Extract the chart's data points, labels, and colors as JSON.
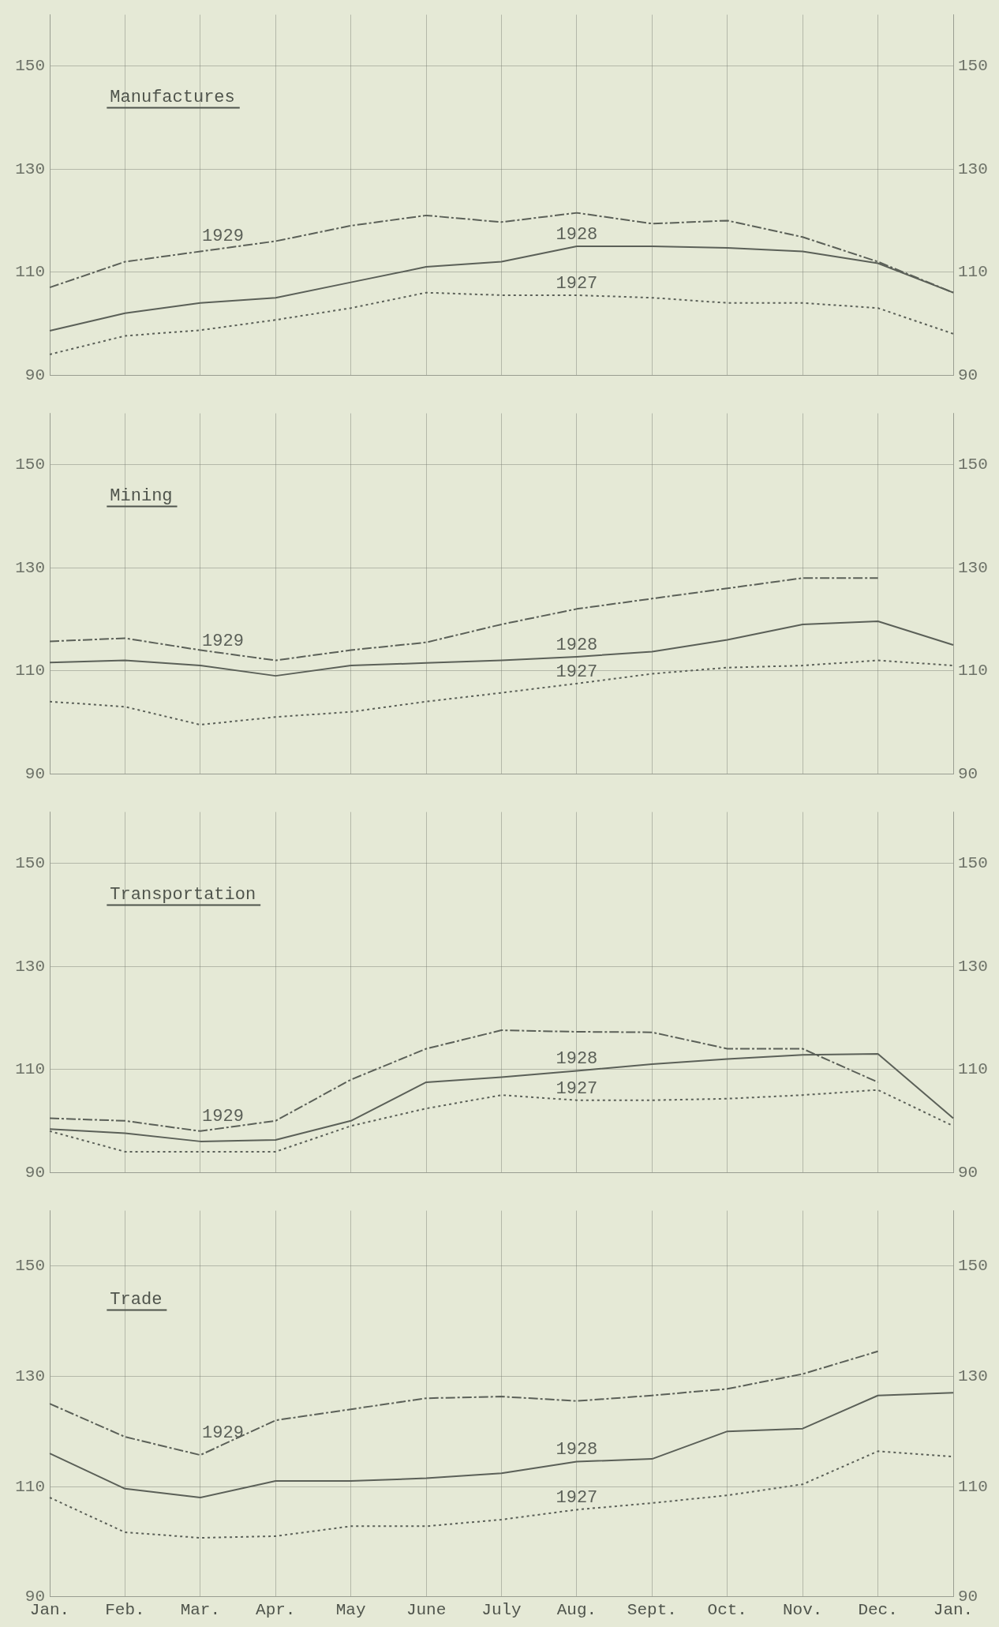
{
  "chart_data": [
    {
      "type": "line",
      "title": "Manufactures",
      "categories": [
        null,
        null,
        null,
        null,
        null,
        null,
        null,
        null,
        null,
        null,
        null,
        null,
        null
      ],
      "ylim": [
        90,
        160
      ],
      "yticks": [
        90,
        110,
        130,
        150
      ],
      "y2lim": [
        90,
        160
      ],
      "y2ticks": [
        90,
        110,
        130,
        150
      ],
      "grid": true,
      "tick_labels": "y",
      "marker": "none",
      "series": [
        {
          "name": "1929",
          "color": "#5b6058",
          "line_style": "dashed",
          "values": [
            107,
            112,
            114,
            116,
            119,
            121,
            119.7,
            121.5,
            119.4,
            120,
            116.8,
            112,
            106
          ]
        },
        {
          "name": "1928",
          "color": "#5b6058",
          "line_style": "solid",
          "values": [
            98.6,
            102,
            104,
            105,
            108,
            111,
            112,
            115,
            115,
            114.7,
            114,
            111.7,
            106
          ]
        },
        {
          "name": "1927",
          "color": "#5b6058",
          "line_style": "dotted",
          "values": [
            94,
            97.6,
            98.7,
            100.7,
            103,
            106,
            105.5,
            105.5,
            105,
            104,
            104,
            103,
            98
          ]
        }
      ]
    },
    {
      "type": "line",
      "title": "Mining",
      "categories": [
        null,
        null,
        null,
        null,
        null,
        null,
        null,
        null,
        null,
        null,
        null,
        null,
        null
      ],
      "ylim": [
        90,
        160
      ],
      "yticks": [
        90,
        110,
        130,
        150
      ],
      "y2lim": [
        90,
        160
      ],
      "y2ticks": [
        90,
        110,
        130,
        150
      ],
      "grid": true,
      "tick_labels": "y",
      "marker": "none",
      "series": [
        {
          "name": "1929",
          "color": "#5b6058",
          "line_style": "dashed",
          "values": [
            115.7,
            116.3,
            114,
            112,
            114,
            115.5,
            119,
            122,
            124,
            126,
            128,
            128,
            null
          ]
        },
        {
          "name": "1928",
          "color": "#5b6058",
          "line_style": "solid",
          "values": [
            111.6,
            112,
            111,
            109,
            111,
            111.5,
            112,
            112.7,
            113.7,
            116,
            119,
            119.6,
            115
          ]
        },
        {
          "name": "1927",
          "color": "#5b6058",
          "line_style": "dotted",
          "values": [
            104,
            103,
            99.5,
            101,
            102,
            104,
            105.7,
            107.5,
            109.4,
            110.6,
            111,
            112,
            111
          ]
        }
      ]
    },
    {
      "type": "line",
      "title": "Transportation",
      "categories": [
        null,
        null,
        null,
        null,
        null,
        null,
        null,
        null,
        null,
        null,
        null,
        null,
        null
      ],
      "ylim": [
        90,
        160
      ],
      "yticks": [
        90,
        110,
        130,
        150
      ],
      "y2lim": [
        90,
        160
      ],
      "y2ticks": [
        90,
        110,
        130,
        150
      ],
      "grid": true,
      "tick_labels": "y",
      "marker": "none",
      "series": [
        {
          "name": "1929",
          "color": "#5b6058",
          "line_style": "dashed",
          "values": [
            100.5,
            100,
            98,
            100,
            108,
            114,
            117.6,
            117.3,
            117.2,
            114,
            114,
            107.5,
            null
          ]
        },
        {
          "name": "1928",
          "color": "#5b6058",
          "line_style": "solid",
          "values": [
            98.4,
            97.6,
            96,
            96.3,
            100,
            107.5,
            108.5,
            109.7,
            111,
            112,
            112.8,
            113,
            100.5
          ]
        },
        {
          "name": "1927",
          "color": "#5b6058",
          "line_style": "dotted",
          "values": [
            98,
            94,
            94,
            94,
            99,
            102.4,
            105,
            104,
            104,
            104.3,
            105,
            106,
            99
          ]
        }
      ]
    },
    {
      "type": "line",
      "title": "Trade",
      "categories": [
        "Jan.",
        "Feb.",
        "Mar.",
        "Apr.",
        "May",
        "June",
        "July",
        "Aug.",
        "Sept.",
        "Oct.",
        "Nov.",
        "Dec.",
        "Jan."
      ],
      "ylim": [
        90,
        160
      ],
      "yticks": [
        90,
        110,
        130,
        150
      ],
      "y2lim": [
        90,
        160
      ],
      "y2ticks": [
        90,
        110,
        130,
        150
      ],
      "grid": true,
      "marker": "none",
      "series": [
        {
          "name": "1929",
          "color": "#5b6058",
          "line_style": "dashed",
          "values": [
            125,
            119,
            115.7,
            122,
            124,
            126,
            126.3,
            125.5,
            126.5,
            127.7,
            130.4,
            134.5,
            null
          ]
        },
        {
          "name": "1928",
          "color": "#5b6058",
          "line_style": "solid",
          "values": [
            116,
            109.6,
            108,
            111,
            111,
            111.5,
            112.4,
            114.5,
            115,
            120,
            120.5,
            126.5,
            127
          ]
        },
        {
          "name": "1927",
          "color": "#5b6058",
          "line_style": "dotted",
          "values": [
            108,
            101.7,
            100.7,
            101,
            102.8,
            102.8,
            104,
            105.8,
            107,
            108.4,
            110.4,
            116.4,
            115.4
          ]
        }
      ]
    }
  ]
}
